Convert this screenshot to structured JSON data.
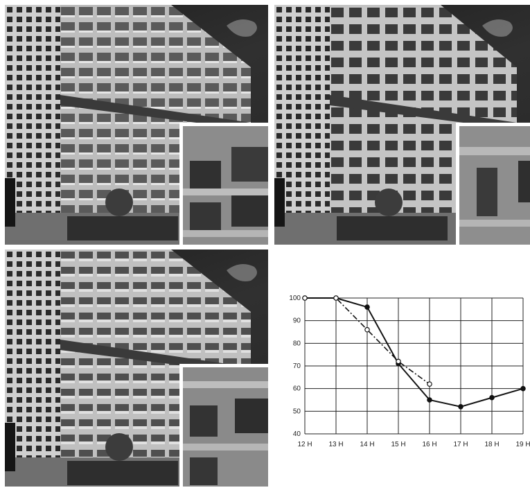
{
  "panels": [
    {
      "name": "photo-facade-1"
    },
    {
      "name": "photo-facade-2"
    },
    {
      "name": "photo-facade-3"
    }
  ],
  "chart_data": {
    "type": "line",
    "title": "",
    "xlabel": "",
    "ylabel": "",
    "categories": [
      "12 H",
      "13 H",
      "14 H",
      "15 H",
      "16 H",
      "17 H",
      "18 H",
      "19 H"
    ],
    "yticks": [
      40,
      50,
      60,
      70,
      80,
      90,
      100
    ],
    "ylim": [
      40,
      100
    ],
    "grid": true,
    "series": [
      {
        "style": "solid",
        "marker": "filled-circle",
        "color": "#111111",
        "points": [
          [
            "12 H",
            100
          ],
          [
            "13 H",
            100
          ],
          [
            "14 H",
            96
          ],
          [
            "15 H",
            71
          ],
          [
            "16 H",
            55
          ],
          [
            "17 H",
            52
          ],
          [
            "18 H",
            56
          ],
          [
            "19 H",
            60
          ]
        ]
      },
      {
        "style": "dash-dot",
        "marker": "open-circle",
        "color": "#111111",
        "points": [
          [
            "12 H",
            100
          ],
          [
            "13 H",
            100
          ],
          [
            "14 H",
            86
          ],
          [
            "15 H",
            72
          ],
          [
            "16 H",
            62
          ]
        ]
      }
    ]
  }
}
